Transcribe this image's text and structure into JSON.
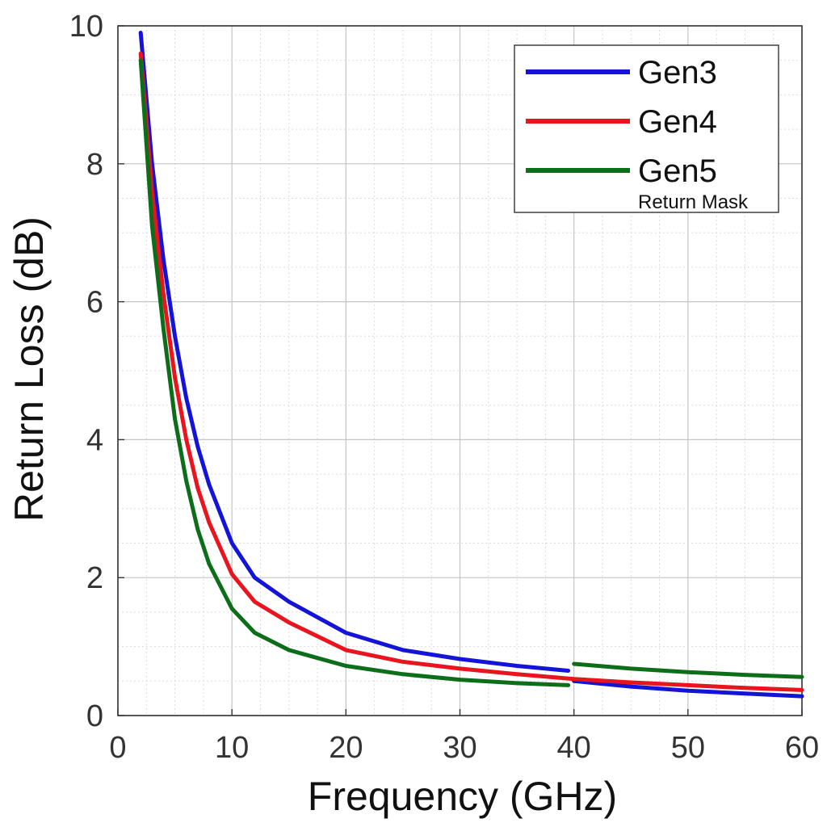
{
  "chart_data": {
    "type": "line",
    "xlabel": "Frequency (GHz)",
    "ylabel": "Return Loss (dB)",
    "xlim": [
      0,
      60
    ],
    "ylim": [
      0,
      10
    ],
    "xticks": [
      "0",
      "10",
      "20",
      "30",
      "40",
      "50",
      "60"
    ],
    "yticks": [
      "0",
      "2",
      "4",
      "6",
      "8",
      "10"
    ],
    "grid": true,
    "legend_position": "top-right",
    "legend_note": "Return Mask",
    "series": [
      {
        "name": "Gen3",
        "color": "#1414d8",
        "x": [
          2,
          3,
          4,
          5,
          6,
          7,
          8,
          10,
          12,
          15,
          20,
          25,
          30,
          35,
          39.5,
          40,
          45,
          50,
          55,
          60
        ],
        "y": [
          9.9,
          8.0,
          6.6,
          5.5,
          4.6,
          3.9,
          3.35,
          2.5,
          2.0,
          1.65,
          1.2,
          0.95,
          0.82,
          0.72,
          0.65,
          0.5,
          0.42,
          0.36,
          0.32,
          0.28
        ]
      },
      {
        "name": "Gen4",
        "color": "#e8141e",
        "x": [
          2,
          3,
          4,
          5,
          6,
          7,
          8,
          10,
          12,
          15,
          20,
          25,
          30,
          35,
          40,
          45,
          50,
          55,
          60
        ],
        "y": [
          9.6,
          7.6,
          6.1,
          4.9,
          4.0,
          3.3,
          2.8,
          2.05,
          1.65,
          1.35,
          0.95,
          0.78,
          0.68,
          0.6,
          0.53,
          0.48,
          0.44,
          0.4,
          0.37
        ]
      },
      {
        "name": "Gen5",
        "color": "#0d6e1a",
        "x": [
          2,
          3,
          4,
          5,
          6,
          7,
          8,
          10,
          12,
          15,
          20,
          25,
          30,
          35,
          39.5,
          40,
          45,
          50,
          55,
          60
        ],
        "y": [
          9.5,
          7.1,
          5.6,
          4.3,
          3.4,
          2.7,
          2.2,
          1.55,
          1.2,
          0.95,
          0.72,
          0.6,
          0.52,
          0.47,
          0.44,
          0.75,
          0.68,
          0.63,
          0.59,
          0.56
        ]
      }
    ]
  }
}
